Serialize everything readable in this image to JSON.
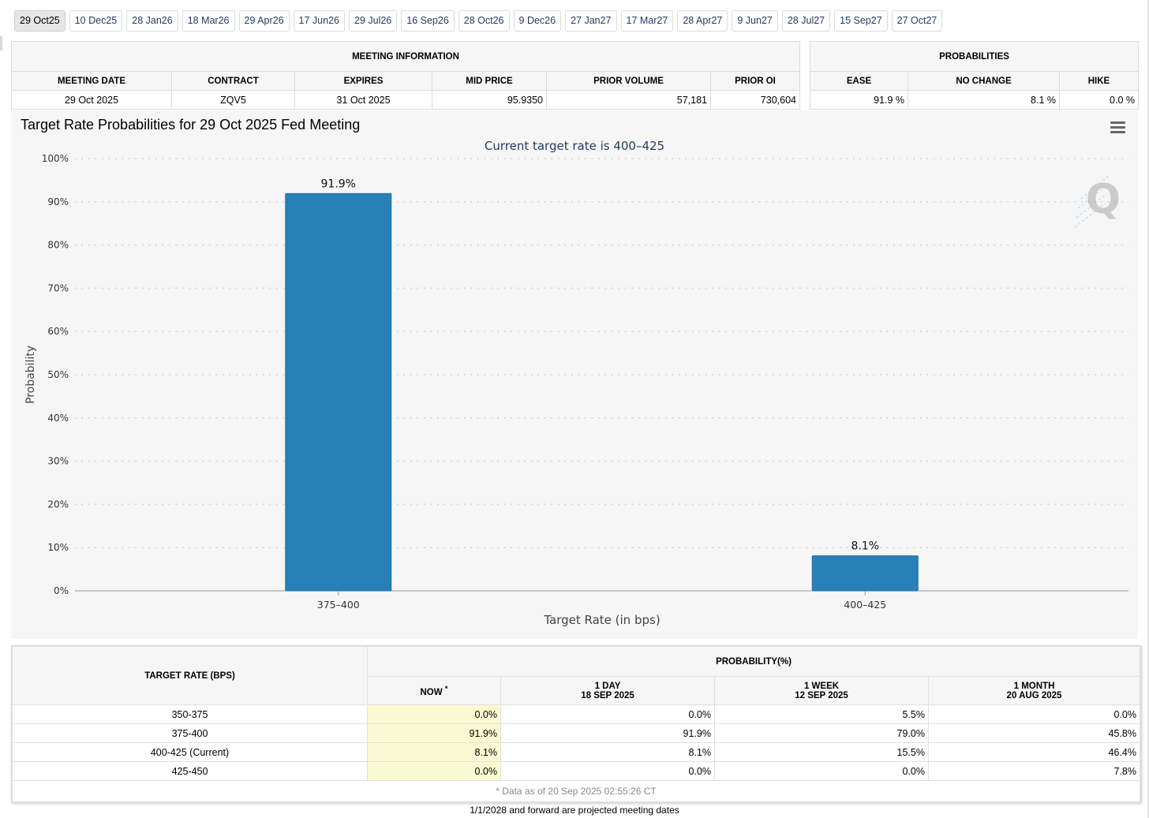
{
  "tabs": [
    "29 Oct25",
    "10 Dec25",
    "28 Jan26",
    "18 Mar26",
    "29 Apr26",
    "17 Jun26",
    "29 Jul26",
    "16 Sep26",
    "28 Oct26",
    "9 Dec26",
    "27 Jan27",
    "17 Mar27",
    "28 Apr27",
    "9 Jun27",
    "28 Jul27",
    "15 Sep27",
    "27 Oct27"
  ],
  "meeting_info": {
    "title": "MEETING INFORMATION",
    "headers": [
      "MEETING DATE",
      "CONTRACT",
      "EXPIRES",
      "MID PRICE",
      "PRIOR VOLUME",
      "PRIOR OI"
    ],
    "values": [
      "29 Oct 2025",
      "ZQV5",
      "31 Oct 2025",
      "95.9350",
      "57,181",
      "730,604"
    ]
  },
  "probabilities": {
    "title": "PROBABILITIES",
    "headers": [
      "EASE",
      "NO CHANGE",
      "HIKE"
    ],
    "values": [
      "91.9 %",
      "8.1 %",
      "0.0 %"
    ]
  },
  "chart": {
    "title": "Target Rate Probabilities for 29 Oct 2025 Fed Meeting",
    "watermark": "Q"
  },
  "chart_data": {
    "type": "bar",
    "title": "Target Rate Probabilities for 29 Oct 2025 Fed Meeting",
    "subtitle": "Current target rate is 400–425",
    "categories": [
      "375–400",
      "400–425"
    ],
    "values": [
      91.9,
      8.1
    ],
    "data_labels": [
      "91.9%",
      "8.1%"
    ],
    "xlabel": "Target Rate (in bps)",
    "ylabel": "Probability",
    "ylim": [
      0,
      100
    ],
    "yticks": [
      "0%",
      "10%",
      "20%",
      "30%",
      "40%",
      "50%",
      "60%",
      "70%",
      "80%",
      "90%",
      "100%"
    ],
    "grid": true,
    "color": "#2980b9"
  },
  "bottom_table": {
    "target_header": "TARGET RATE (BPS)",
    "prob_header": "PROBABILITY(%)",
    "now_label": "NOW",
    "now_mark": "*",
    "cols": [
      {
        "l1": "1 DAY",
        "l2": "18 SEP 2025"
      },
      {
        "l1": "1 WEEK",
        "l2": "12 SEP 2025"
      },
      {
        "l1": "1 MONTH",
        "l2": "20 AUG 2025"
      }
    ],
    "rows": [
      {
        "rate": "350-375",
        "now": "0.0%",
        "day": "0.0%",
        "week": "5.5%",
        "month": "0.0%"
      },
      {
        "rate": "375-400",
        "now": "91.9%",
        "day": "91.9%",
        "week": "79.0%",
        "month": "45.8%"
      },
      {
        "rate": "400-425 (Current)",
        "now": "8.1%",
        "day": "8.1%",
        "week": "15.5%",
        "month": "46.4%"
      },
      {
        "rate": "425-450",
        "now": "0.0%",
        "day": "0.0%",
        "week": "0.0%",
        "month": "7.8%"
      }
    ],
    "note": "* Data as of 20 Sep 2025 02:55:26 CT"
  },
  "footer": "1/1/2028 and forward are projected meeting dates"
}
